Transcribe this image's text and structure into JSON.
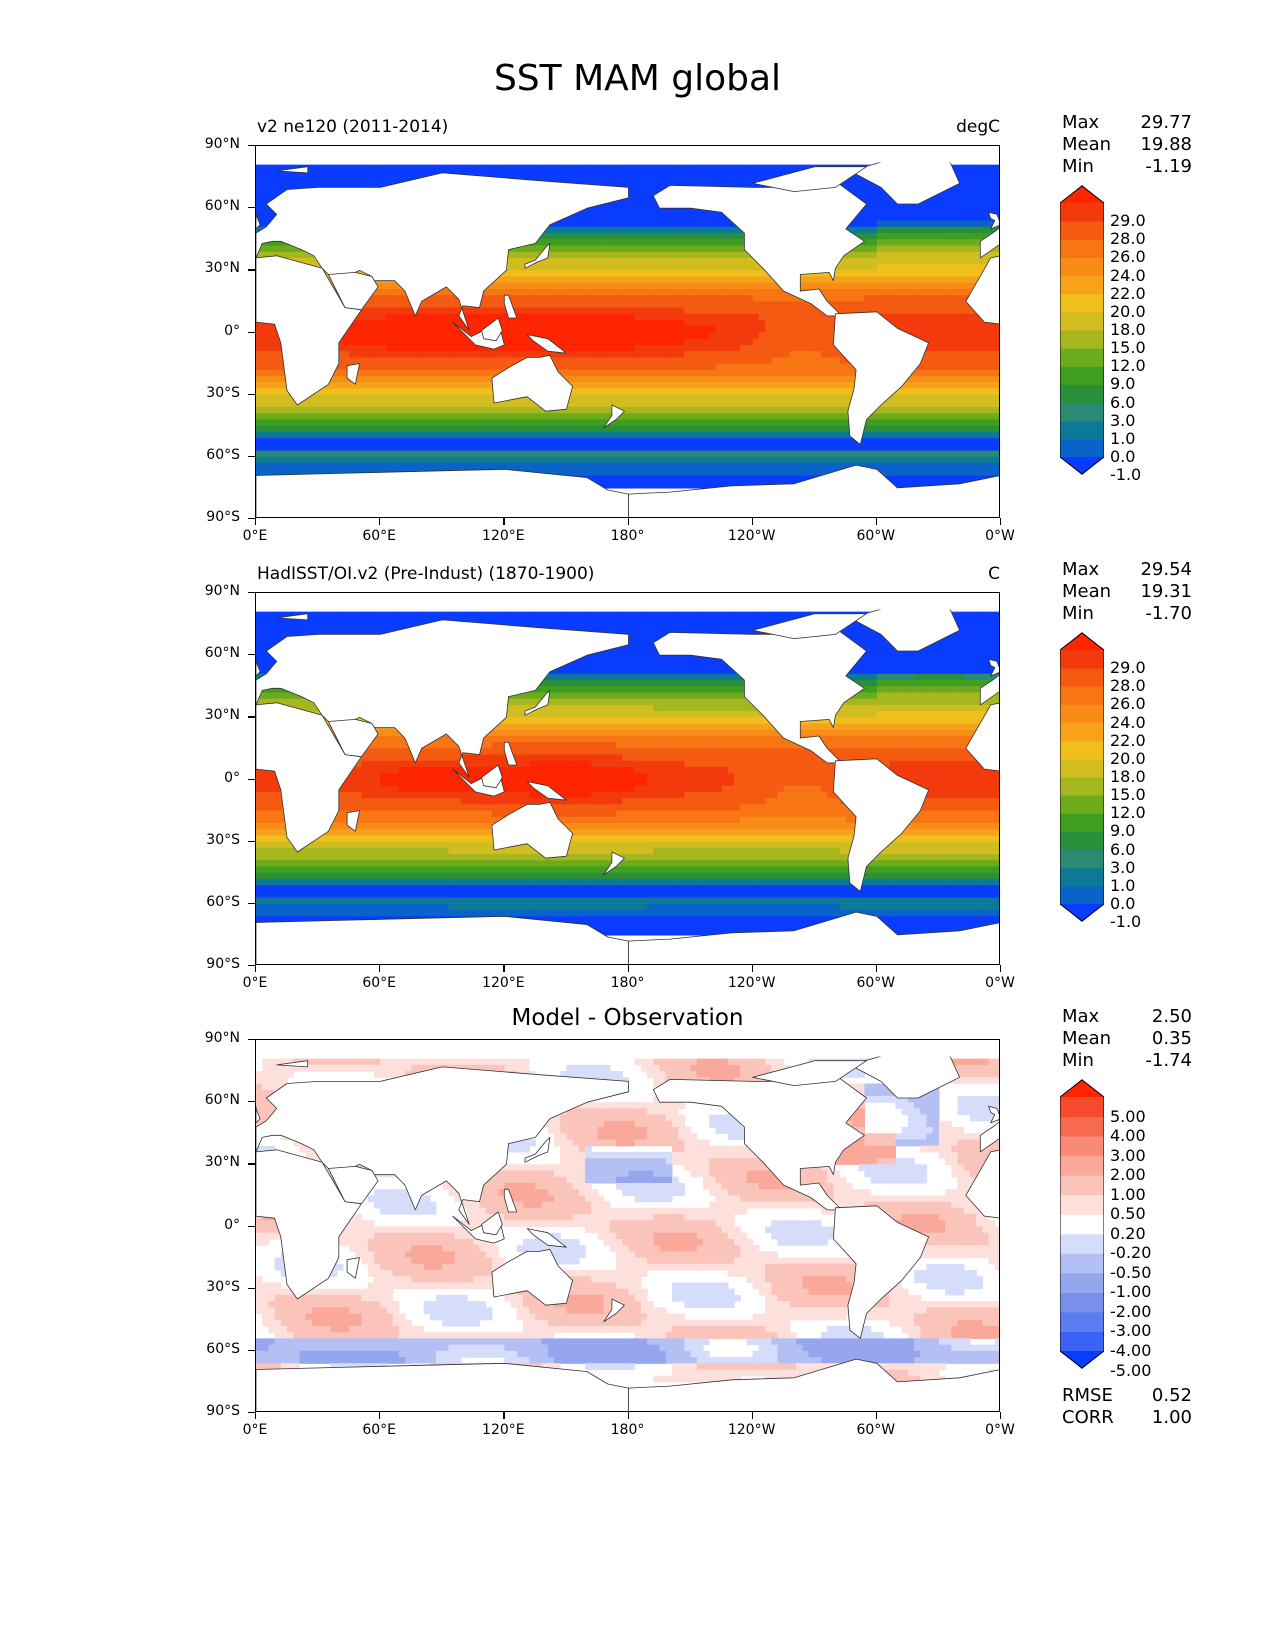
{
  "title": "SST MAM global",
  "axes": {
    "lat_labels": [
      "90°N",
      "60°N",
      "30°N",
      "0°",
      "30°S",
      "60°S",
      "90°S"
    ],
    "lon_labels": [
      "0°E",
      "60°E",
      "120°E",
      "180°",
      "120°W",
      "60°W",
      "0°W"
    ]
  },
  "panels": [
    {
      "left_title": "v2 ne120 (2011-2014)",
      "right_title": "degC",
      "center_title": "",
      "stats": [
        {
          "label": "Max",
          "value": "29.77"
        },
        {
          "label": "Mean",
          "value": "19.88"
        },
        {
          "label": "Min",
          "value": "-1.19"
        }
      ],
      "colorbar_labels": [
        "29.0",
        "28.0",
        "26.0",
        "24.0",
        "22.0",
        "20.0",
        "18.0",
        "15.0",
        "12.0",
        "9.0",
        "6.0",
        "3.0",
        "1.0",
        "0.0",
        "-1.0"
      ],
      "field": "model"
    },
    {
      "left_title": "HadISST/OI.v2 (Pre-Indust) (1870-1900)",
      "right_title": "C",
      "center_title": "",
      "stats": [
        {
          "label": "Max",
          "value": "29.54"
        },
        {
          "label": "Mean",
          "value": "19.31"
        },
        {
          "label": "Min",
          "value": "-1.70"
        }
      ],
      "colorbar_labels": [
        "29.0",
        "28.0",
        "26.0",
        "24.0",
        "22.0",
        "20.0",
        "18.0",
        "15.0",
        "12.0",
        "9.0",
        "6.0",
        "3.0",
        "1.0",
        "0.0",
        "-1.0"
      ],
      "field": "obs"
    },
    {
      "left_title": "",
      "right_title": "",
      "center_title": "Model - Observation",
      "stats": [
        {
          "label": "Max",
          "value": "2.50"
        },
        {
          "label": "Mean",
          "value": "0.35"
        },
        {
          "label": "Min",
          "value": "-1.74"
        }
      ],
      "colorbar_labels": [
        "5.00",
        "4.00",
        "3.00",
        "2.00",
        "1.00",
        "0.50",
        "0.20",
        "-0.20",
        "-0.50",
        "-1.00",
        "-2.00",
        "-3.00",
        "-4.00",
        "-5.00"
      ],
      "extra_stats": [
        {
          "label": "RMSE",
          "value": "0.52"
        },
        {
          "label": "CORR",
          "value": "1.00"
        }
      ],
      "field": "diff"
    }
  ],
  "colors": {
    "sst_scale": [
      "#0a3cff",
      "#0a63c8",
      "#0c7a96",
      "#2a8a74",
      "#2a8f3a",
      "#3f9e1f",
      "#6bab1c",
      "#a6b61f",
      "#d2bd20",
      "#f1bf1c",
      "#f6a31b",
      "#f78d16",
      "#f77613",
      "#f45a11",
      "#f23a0c",
      "#ff2500"
    ],
    "diff_scale": [
      "#0a3cff",
      "#3a63f5",
      "#5a7ef0",
      "#7890ea",
      "#96a6ee",
      "#b4c0f4",
      "#d6ddfb",
      "#ffffff",
      "#fde0db",
      "#fbc4ba",
      "#f9a899",
      "#f98a76",
      "#f76a52",
      "#f54a2c",
      "#ff2500"
    ],
    "land": "#ffffff",
    "coast": "#333333"
  }
}
